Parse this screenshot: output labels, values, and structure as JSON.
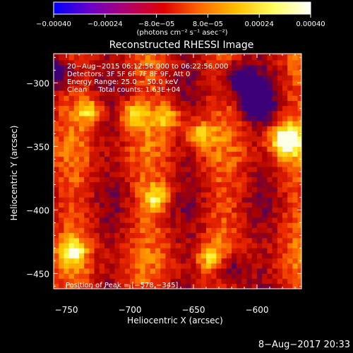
{
  "colorbar": {
    "ticks": [
      {
        "value": -0.0004,
        "label": "−0.00040"
      },
      {
        "value": -0.00024,
        "label": "−0.00024"
      },
      {
        "value": -8e-05,
        "label": "−8.0e−05"
      },
      {
        "value": 8e-05,
        "label": "8.0e−05"
      },
      {
        "value": 0.00024,
        "label": "0.00024"
      },
      {
        "value": 0.0004,
        "label": "0.00040"
      }
    ],
    "range": [
      -0.0004,
      0.0004
    ],
    "unit_label": "(photons cm⁻² s⁻¹ asec⁻²)",
    "colormap": [
      "#0000ff",
      "#6b00c8",
      "#b0006a",
      "#e00000",
      "#ff6a00",
      "#ffc000",
      "#ffff60",
      "#ffffff"
    ]
  },
  "chart_data": {
    "type": "heatmap",
    "title": "Reconstructed RHESSI Image",
    "xlabel": "Heliocentric X (arcsec)",
    "ylabel": "Heliocentric Y (arcsec)",
    "xlim": [
      -760,
      -565
    ],
    "ylim": [
      -462,
      -277
    ],
    "xticks": [
      {
        "value": -750,
        "label": "−750"
      },
      {
        "value": -700,
        "label": "−700"
      },
      {
        "value": -650,
        "label": "−650"
      },
      {
        "value": -600,
        "label": "−600"
      }
    ],
    "yticks": [
      {
        "value": -300,
        "label": "−300"
      },
      {
        "value": -350,
        "label": "−350"
      },
      {
        "value": -400,
        "label": "−400"
      },
      {
        "value": -450,
        "label": "−450"
      }
    ],
    "annotations": [
      "20−Aug−2015 06:12:56.000 to 06:22:56.000",
      "Detectors: 3F 5F 6F 7F 8F 9F, Att 0",
      "Energy Range: 25.0 − 50.0 keV",
      "Clean     Total counts: 1.63E+04"
    ],
    "peak_label": "Position of Peak = [−578,−345]",
    "peak": {
      "x": -578,
      "y": -345
    },
    "bright_sources": [
      {
        "x": -578,
        "y": -345
      },
      {
        "x": -669,
        "y": -327
      },
      {
        "x": -645,
        "y": -340
      },
      {
        "x": -731,
        "y": -322
      },
      {
        "x": -697,
        "y": -325
      },
      {
        "x": -679,
        "y": -390
      },
      {
        "x": -636,
        "y": -438
      },
      {
        "x": -745,
        "y": -432
      }
    ],
    "dark_regions": [
      {
        "x": -755,
        "y": -290
      },
      {
        "x": -616,
        "y": -296
      },
      {
        "x": -600,
        "y": -315
      },
      {
        "x": -622,
        "y": -446
      }
    ]
  },
  "footer": {
    "timestamp": "8−Aug−2017 20:33"
  }
}
